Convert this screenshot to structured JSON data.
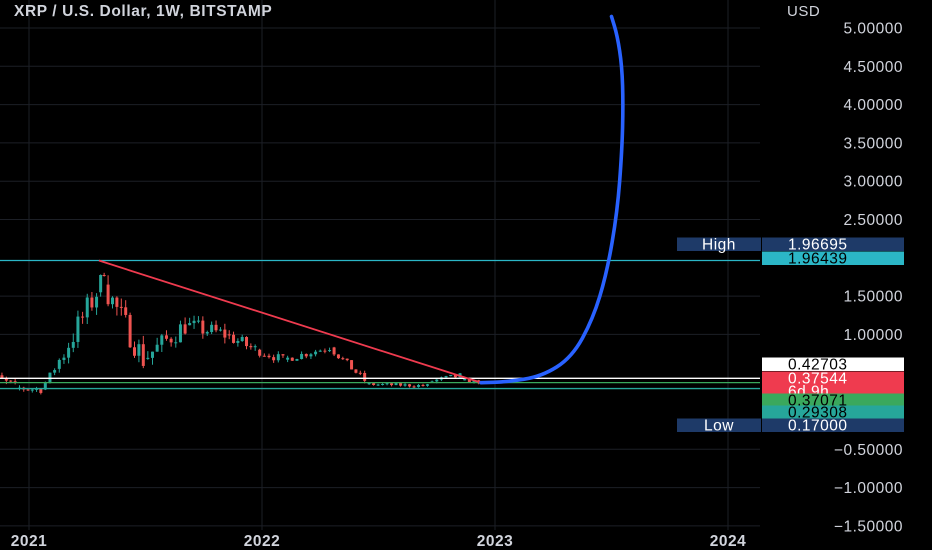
{
  "header": {
    "title": "XRP / U.S. Dollar, 1W, BITSTAMP",
    "unit": "USD"
  },
  "colors": {
    "background": "#000000",
    "grid": "#1c1f26",
    "candle_up": "#26a69a",
    "candle_down": "#ef5350",
    "trendline": "#ef3b4f",
    "projection": "#2962ff",
    "high_line": "#2bb6c6",
    "level_white": "#ffffff",
    "level_green": "#3aa85c",
    "level_teal": "#26a69a"
  },
  "chart_data": {
    "type": "candlestick",
    "title": "XRP / U.S. Dollar, 1W, BITSTAMP",
    "ylabel": "USD",
    "ylim": [
      -1.7,
      5.25
    ],
    "y_ticks": [
      "5.00000",
      "4.50000",
      "4.00000",
      "3.50000",
      "3.00000",
      "2.50000",
      "1.50000",
      "1.00000",
      "−0.50000",
      "−1.00000",
      "−1.50000"
    ],
    "x_ticks": [
      "2021",
      "2022",
      "2023",
      "2024"
    ],
    "grid": true,
    "series": [
      {
        "name": "XRPUSD",
        "kind": "candles",
        "segments": [
          {
            "from": 2020.78,
            "to": 2020.95,
            "start": 0.55,
            "end": 0.32,
            "vol": 0.14
          },
          {
            "from": 2020.95,
            "to": 2021.06,
            "start": 0.3,
            "end": 0.28,
            "vol": 0.1
          },
          {
            "from": 2021.06,
            "to": 2021.12,
            "start": 0.28,
            "end": 0.55,
            "vol": 0.1
          },
          {
            "from": 2021.12,
            "to": 2021.3,
            "start": 0.55,
            "end": 1.55,
            "vol": 0.35
          },
          {
            "from": 2021.3,
            "to": 2021.33,
            "start": 1.55,
            "end": 1.85,
            "vol": 0.2
          },
          {
            "from": 2021.33,
            "to": 2021.5,
            "start": 1.65,
            "end": 0.68,
            "vol": 0.35
          },
          {
            "from": 2021.5,
            "to": 2021.68,
            "start": 0.68,
            "end": 1.12,
            "vol": 0.28
          },
          {
            "from": 2021.68,
            "to": 2021.85,
            "start": 1.12,
            "end": 1.0,
            "vol": 0.22
          },
          {
            "from": 2021.85,
            "to": 2021.98,
            "start": 1.0,
            "end": 0.8,
            "vol": 0.18
          },
          {
            "from": 2021.98,
            "to": 2022.1,
            "start": 0.8,
            "end": 0.67,
            "vol": 0.12
          },
          {
            "from": 2022.1,
            "to": 2022.3,
            "start": 0.67,
            "end": 0.83,
            "vol": 0.1
          },
          {
            "from": 2022.3,
            "to": 2022.45,
            "start": 0.83,
            "end": 0.4,
            "vol": 0.1
          },
          {
            "from": 2022.45,
            "to": 2022.72,
            "start": 0.35,
            "end": 0.33,
            "vol": 0.05
          },
          {
            "from": 2022.72,
            "to": 2022.86,
            "start": 0.38,
            "end": 0.46,
            "vol": 0.08
          },
          {
            "from": 2022.86,
            "to": 2022.94,
            "start": 0.4,
            "end": 0.38,
            "vol": 0.05
          }
        ]
      },
      {
        "name": "",
        "kind": "trendline",
        "points": [
          [
            2021.3,
            1.96439
          ],
          [
            2022.94,
            0.37
          ]
        ]
      },
      {
        "name": "",
        "kind": "projection",
        "points": [
          [
            2022.94,
            0.37
          ],
          [
            2023.05,
            0.38
          ],
          [
            2023.2,
            0.45
          ],
          [
            2023.33,
            0.7
          ],
          [
            2023.42,
            1.2
          ],
          [
            2023.48,
            1.8
          ],
          [
            2023.525,
            2.6
          ],
          [
            2023.545,
            3.4
          ],
          [
            2023.55,
            4.0
          ],
          [
            2023.545,
            4.5
          ],
          [
            2023.525,
            4.9
          ],
          [
            2023.5,
            5.15
          ]
        ]
      }
    ],
    "levels": [
      {
        "label": "High",
        "value": "1.96695",
        "y": 1.96695,
        "line": false
      },
      {
        "label": "",
        "value": "1.96439",
        "y": 1.96439,
        "line": true
      },
      {
        "label": "",
        "value": "0.42703",
        "y": 0.42703,
        "line": true
      },
      {
        "label": "",
        "value": "0.37544",
        "y": 0.37544,
        "line": false,
        "sub": "6d 9h"
      },
      {
        "label": "",
        "value": "0.37071",
        "y": 0.37071,
        "line": true
      },
      {
        "label": "",
        "value": "0.29308",
        "y": 0.29308,
        "line": true
      },
      {
        "label": "Low",
        "value": "0.17000",
        "y": 0.17,
        "line": false
      }
    ]
  }
}
